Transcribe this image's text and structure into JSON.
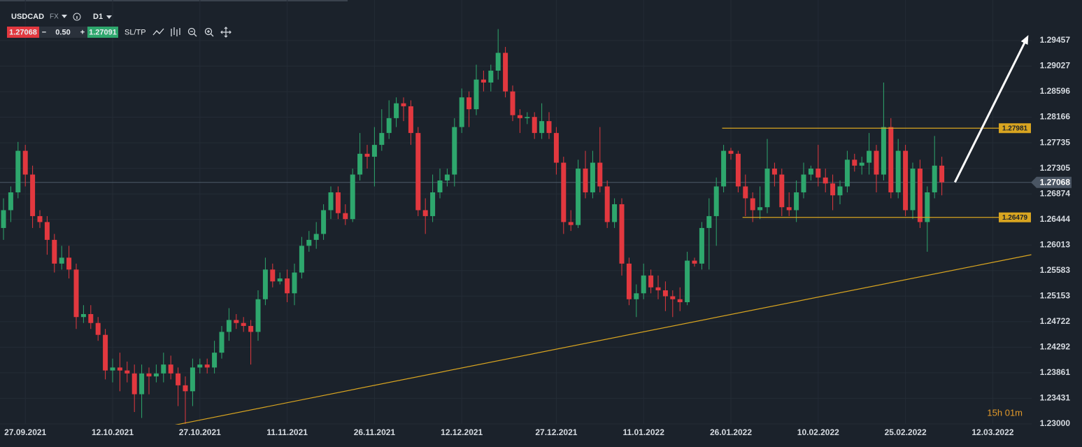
{
  "header": {
    "symbol": "USDCAD",
    "market": "FX",
    "timeframe": "D1",
    "bid": "1.27068",
    "minus": "−",
    "spread": "0.50",
    "plus": "+",
    "ask": "1.27091",
    "sltp": "SL/TP"
  },
  "chart_data": {
    "type": "candlestick",
    "up_color": "#2ea76d",
    "down_color": "#e2383f",
    "grid": true,
    "ylim": [
      1.23,
      1.3014
    ],
    "yticks": [
      1.29457,
      1.29027,
      1.28596,
      1.28166,
      1.27735,
      1.27305,
      1.26874,
      1.26444,
      1.26013,
      1.25583,
      1.25153,
      1.24722,
      1.24292,
      1.23861,
      1.23431,
      {
        "value": 1.23,
        "label": "1.23000"
      }
    ],
    "current_price": 1.27068,
    "levels": [
      {
        "value": 1.27981,
        "start": 98.8,
        "color": "#d9a520"
      },
      {
        "value": 1.26479,
        "start": 101.6,
        "color": "#d9a520"
      }
    ],
    "trendline": {
      "start": [
        23.1,
        1.2297
      ],
      "end": [
        141.3,
        1.2585
      ],
      "color": "#d9a520"
    },
    "arrow": {
      "start": [
        130.8,
        1.2707
      ],
      "end": [
        140.9,
        1.2955
      ],
      "color": "#ffffff"
    },
    "timer": "15h 01m",
    "categories": [
      null,
      null,
      null,
      "27.09.2021",
      null,
      null,
      null,
      null,
      null,
      null,
      null,
      null,
      null,
      null,
      null,
      "12.10.2021",
      null,
      null,
      null,
      null,
      null,
      null,
      null,
      null,
      null,
      null,
      null,
      "27.10.2021",
      null,
      null,
      null,
      null,
      null,
      null,
      null,
      null,
      null,
      null,
      null,
      "11.11.2021",
      null,
      null,
      null,
      null,
      null,
      null,
      null,
      null,
      null,
      null,
      null,
      "26.11.2021",
      null,
      null,
      null,
      null,
      null,
      null,
      null,
      null,
      null,
      null,
      null,
      "12.12.2021",
      null,
      null,
      null,
      null,
      null,
      null,
      null,
      null,
      null,
      null,
      null,
      null,
      "27.12.2021",
      null,
      null,
      null,
      null,
      null,
      null,
      null,
      null,
      null,
      null,
      null,
      "11.01.2022",
      null,
      null,
      null,
      null,
      null,
      null,
      null,
      null,
      null,
      null,
      null,
      "26.01.2022",
      null,
      null,
      null,
      null,
      null,
      null,
      null,
      null,
      null,
      null,
      null,
      "10.02.2022",
      null,
      null,
      null,
      null,
      null,
      null,
      null,
      null,
      null,
      null,
      null,
      "25.02.2022",
      null,
      null,
      null,
      null,
      null,
      null,
      null,
      null,
      null,
      null,
      null,
      "12.03.2022"
    ],
    "ohlc": [
      [
        1.263,
        1.268,
        1.261,
        1.266
      ],
      [
        1.266,
        1.27,
        1.264,
        1.269
      ],
      [
        1.269,
        1.2775,
        1.268,
        1.276
      ],
      [
        1.276,
        1.277,
        1.27,
        1.272
      ],
      [
        1.272,
        1.2735,
        1.263,
        1.265
      ],
      [
        1.265,
        1.266,
        1.263,
        1.264
      ],
      [
        1.264,
        1.265,
        1.2585,
        1.261
      ],
      [
        1.261,
        1.262,
        1.2555,
        1.257
      ],
      [
        1.257,
        1.26,
        1.256,
        1.258
      ],
      [
        1.258,
        1.26,
        1.2545,
        1.256
      ],
      [
        1.256,
        1.257,
        1.246,
        1.248
      ],
      [
        1.248,
        1.25,
        1.247,
        1.2485
      ],
      [
        1.2485,
        1.25,
        1.246,
        1.247
      ],
      [
        1.247,
        1.248,
        1.244,
        1.245
      ],
      [
        1.245,
        1.246,
        1.2375,
        1.239
      ],
      [
        1.239,
        1.241,
        1.237,
        1.2395
      ],
      [
        1.2395,
        1.242,
        1.2355,
        1.239
      ],
      [
        1.239,
        1.2405,
        1.237,
        1.2385
      ],
      [
        1.2385,
        1.24,
        1.232,
        1.235
      ],
      [
        1.235,
        1.24,
        1.231,
        1.2385
      ],
      [
        1.2385,
        1.2395,
        1.235,
        1.238
      ],
      [
        1.238,
        1.24,
        1.237,
        1.2385
      ],
      [
        1.2385,
        1.242,
        1.237,
        1.24
      ],
      [
        1.24,
        1.2415,
        1.2375,
        1.2385
      ],
      [
        1.2385,
        1.2395,
        1.233,
        1.2365
      ],
      [
        1.2365,
        1.238,
        1.23,
        1.2355
      ],
      [
        1.2355,
        1.241,
        1.233,
        1.2395
      ],
      [
        1.2395,
        1.241,
        1.2385,
        1.24
      ],
      [
        1.24,
        1.241,
        1.2385,
        1.2395
      ],
      [
        1.2395,
        1.244,
        1.2385,
        1.242
      ],
      [
        1.242,
        1.2465,
        1.241,
        1.2455
      ],
      [
        1.2455,
        1.2495,
        1.244,
        1.2475
      ],
      [
        1.2475,
        1.2485,
        1.246,
        1.247
      ],
      [
        1.247,
        1.248,
        1.2455,
        1.2465
      ],
      [
        1.2465,
        1.2475,
        1.24,
        1.2455
      ],
      [
        1.2455,
        1.2525,
        1.244,
        1.251
      ],
      [
        1.251,
        1.258,
        1.25,
        1.256
      ],
      [
        1.256,
        1.257,
        1.253,
        1.254
      ],
      [
        1.254,
        1.2555,
        1.2535,
        1.2545
      ],
      [
        1.2545,
        1.256,
        1.2505,
        1.252
      ],
      [
        1.252,
        1.257,
        1.25,
        1.2555
      ],
      [
        1.2555,
        1.2615,
        1.2545,
        1.26
      ],
      [
        1.26,
        1.2625,
        1.259,
        1.261
      ],
      [
        1.261,
        1.264,
        1.2595,
        1.262
      ],
      [
        1.262,
        1.267,
        1.261,
        1.266
      ],
      [
        1.266,
        1.27,
        1.2645,
        1.269
      ],
      [
        1.269,
        1.27,
        1.2645,
        1.2655
      ],
      [
        1.2655,
        1.267,
        1.2635,
        1.2645
      ],
      [
        1.2645,
        1.273,
        1.264,
        1.272
      ],
      [
        1.272,
        1.279,
        1.271,
        1.2755
      ],
      [
        1.2755,
        1.277,
        1.273,
        1.275
      ],
      [
        1.275,
        1.28,
        1.27,
        1.277
      ],
      [
        1.277,
        1.283,
        1.276,
        1.279
      ],
      [
        1.279,
        1.2845,
        1.278,
        1.2815
      ],
      [
        1.2815,
        1.285,
        1.28,
        1.284
      ],
      [
        1.284,
        1.285,
        1.281,
        1.2835
      ],
      [
        1.2835,
        1.2845,
        1.277,
        1.279
      ],
      [
        1.279,
        1.28,
        1.265,
        1.266
      ],
      [
        1.266,
        1.268,
        1.262,
        1.265
      ],
      [
        1.265,
        1.272,
        1.264,
        1.269
      ],
      [
        1.269,
        1.273,
        1.268,
        1.271
      ],
      [
        1.271,
        1.273,
        1.27,
        1.272
      ],
      [
        1.272,
        1.2815,
        1.27,
        1.28
      ],
      [
        1.28,
        1.2865,
        1.279,
        1.285
      ],
      [
        1.285,
        1.286,
        1.28,
        1.283
      ],
      [
        1.283,
        1.2905,
        1.282,
        1.288
      ],
      [
        1.288,
        1.2895,
        1.286,
        1.2875
      ],
      [
        1.2875,
        1.2905,
        1.286,
        1.2895
      ],
      [
        1.2895,
        1.2965,
        1.288,
        1.2925
      ],
      [
        1.2925,
        1.2935,
        1.285,
        1.286
      ],
      [
        1.286,
        1.287,
        1.281,
        1.282
      ],
      [
        1.282,
        1.283,
        1.279,
        1.2815
      ],
      [
        1.2815,
        1.2825,
        1.2805,
        1.2817
      ],
      [
        1.2817,
        1.2825,
        1.278,
        1.279
      ],
      [
        1.279,
        1.284,
        1.278,
        1.281
      ],
      [
        1.281,
        1.2825,
        1.278,
        1.279
      ],
      [
        1.279,
        1.28,
        1.272,
        1.274
      ],
      [
        1.274,
        1.275,
        1.262,
        1.264
      ],
      [
        1.264,
        1.266,
        1.2625,
        1.2635
      ],
      [
        1.2635,
        1.2745,
        1.263,
        1.273
      ],
      [
        1.273,
        1.276,
        1.268,
        1.269
      ],
      [
        1.269,
        1.276,
        1.268,
        1.274
      ],
      [
        1.274,
        1.28,
        1.269,
        1.27
      ],
      [
        1.27,
        1.271,
        1.263,
        1.264
      ],
      [
        1.264,
        1.268,
        1.263,
        1.267
      ],
      [
        1.267,
        1.268,
        1.255,
        1.257
      ],
      [
        1.257,
        1.258,
        1.25,
        1.251
      ],
      [
        1.251,
        1.2535,
        1.248,
        1.252
      ],
      [
        1.252,
        1.257,
        1.251,
        1.255
      ],
      [
        1.255,
        1.256,
        1.252,
        1.253
      ],
      [
        1.253,
        1.255,
        1.251,
        1.2525
      ],
      [
        1.2525,
        1.254,
        1.249,
        1.2515
      ],
      [
        1.2515,
        1.2525,
        1.248,
        1.251
      ],
      [
        1.251,
        1.253,
        1.249,
        1.2505
      ],
      [
        1.2505,
        1.259,
        1.25,
        1.2575
      ],
      [
        1.2575,
        1.258,
        1.2565,
        1.257
      ],
      [
        1.257,
        1.264,
        1.256,
        1.263
      ],
      [
        1.263,
        1.268,
        1.256,
        1.265
      ],
      [
        1.265,
        1.2715,
        1.26,
        1.27
      ],
      [
        1.27,
        1.277,
        1.269,
        1.276
      ],
      [
        1.276,
        1.2765,
        1.2745,
        1.2755
      ],
      [
        1.2755,
        1.276,
        1.269,
        1.27
      ],
      [
        1.27,
        1.272,
        1.265,
        1.268
      ],
      [
        1.268,
        1.269,
        1.264,
        1.266
      ],
      [
        1.266,
        1.27,
        1.2645,
        1.2665
      ],
      [
        1.2665,
        1.278,
        1.2655,
        1.273
      ],
      [
        1.273,
        1.274,
        1.27,
        1.272
      ],
      [
        1.272,
        1.273,
        1.265,
        1.2665
      ],
      [
        1.2665,
        1.269,
        1.265,
        1.266
      ],
      [
        1.266,
        1.271,
        1.264,
        1.269
      ],
      [
        1.269,
        1.274,
        1.268,
        1.272
      ],
      [
        1.272,
        1.2735,
        1.271,
        1.273
      ],
      [
        1.273,
        1.277,
        1.27,
        1.2715
      ],
      [
        1.2715,
        1.273,
        1.269,
        1.2705
      ],
      [
        1.2705,
        1.272,
        1.266,
        1.2685
      ],
      [
        1.2685,
        1.271,
        1.267,
        1.27
      ],
      [
        1.27,
        1.276,
        1.269,
        1.2745
      ],
      [
        1.2745,
        1.2755,
        1.2725,
        1.2735
      ],
      [
        1.2735,
        1.275,
        1.272,
        1.274
      ],
      [
        1.274,
        1.279,
        1.272,
        1.276
      ],
      [
        1.276,
        1.277,
        1.269,
        1.272
      ],
      [
        1.272,
        1.2875,
        1.271,
        1.28
      ],
      [
        1.28,
        1.2815,
        1.268,
        1.269
      ],
      [
        1.269,
        1.278,
        1.268,
        1.276
      ],
      [
        1.276,
        1.277,
        1.265,
        1.266
      ],
      [
        1.266,
        1.274,
        1.2645,
        1.273
      ],
      [
        1.273,
        1.2745,
        1.263,
        1.264
      ],
      [
        1.264,
        1.27,
        1.259,
        1.269
      ],
      [
        1.269,
        1.2785,
        1.268,
        1.2735
      ],
      [
        1.2735,
        1.275,
        1.2685,
        1.2707
      ],
      null,
      null,
      null,
      null,
      null,
      null,
      null
    ]
  }
}
